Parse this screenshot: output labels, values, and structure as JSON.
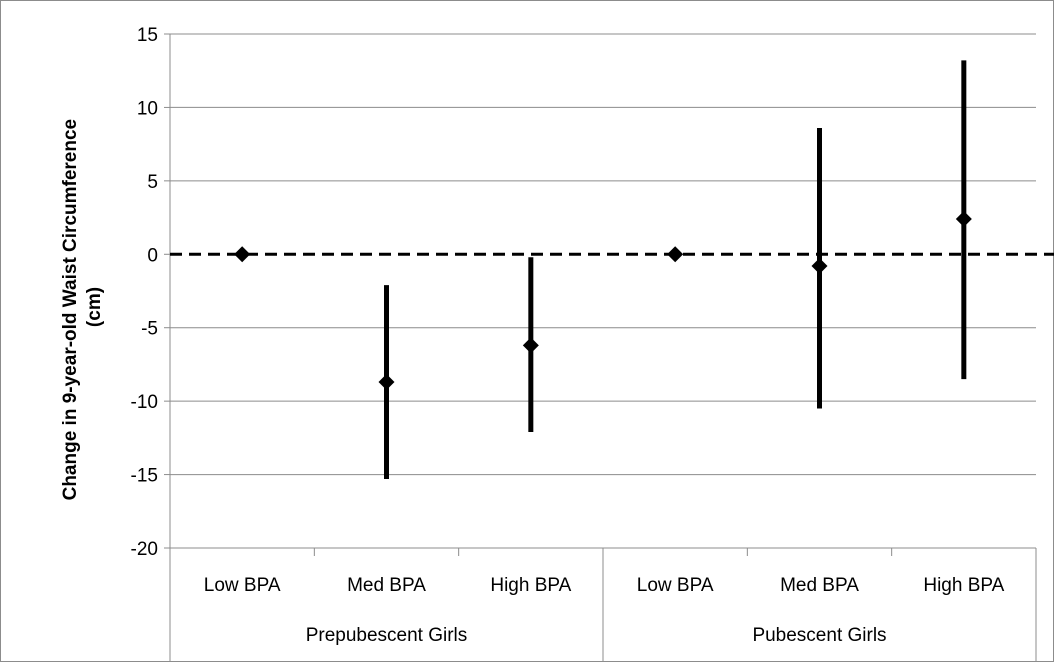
{
  "chart_data": {
    "type": "scatter",
    "subtype": "point-with-error-bars",
    "title": "",
    "ylabel": "Change in 9-year-old Waist Circumference (cm)",
    "ylabel_lines": [
      "Change in 9-year-old Waist Circumference",
      "(cm)"
    ],
    "ylim": [
      -20,
      15
    ],
    "yticks": [
      15,
      10,
      5,
      0,
      -5,
      -10,
      -15,
      -20
    ],
    "grid": true,
    "reference_line": {
      "y": 0,
      "style": "dashed"
    },
    "groups": [
      {
        "label": "Prepubescent Girls",
        "categories": [
          "Low BPA",
          "Med BPA",
          "High BPA"
        ]
      },
      {
        "label": "Pubescent Girls",
        "categories": [
          "Low BPA",
          "Med BPA",
          "High BPA"
        ]
      }
    ],
    "points": [
      {
        "group": "Prepubescent Girls",
        "category": "Low BPA",
        "value": 0,
        "lower": null,
        "upper": null
      },
      {
        "group": "Prepubescent Girls",
        "category": "Med BPA",
        "value": -8.7,
        "lower": -15.3,
        "upper": -2.1
      },
      {
        "group": "Prepubescent Girls",
        "category": "High BPA",
        "value": -6.2,
        "lower": -12.1,
        "upper": -0.2
      },
      {
        "group": "Pubescent Girls",
        "category": "Low BPA",
        "value": 0,
        "lower": null,
        "upper": null
      },
      {
        "group": "Pubescent Girls",
        "category": "Med BPA",
        "value": -0.8,
        "lower": -10.5,
        "upper": 8.6
      },
      {
        "group": "Pubescent Girls",
        "category": "High BPA",
        "value": 2.4,
        "lower": -8.5,
        "upper": 13.2
      }
    ],
    "colors": {
      "marker": "#000000",
      "grid": "#8c8c8c",
      "axis": "#8c8c8c"
    }
  }
}
